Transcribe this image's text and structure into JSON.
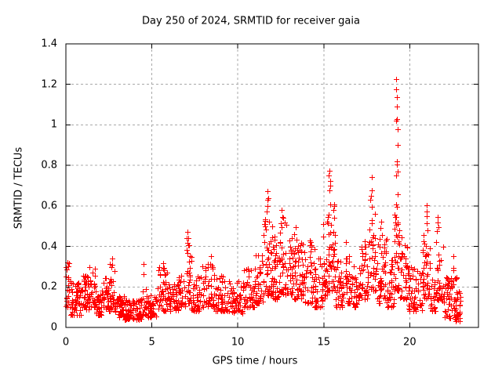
{
  "chart_data": {
    "type": "scatter",
    "title": "Day 250 of 2024, SRMTID for receiver gaia",
    "xlabel": "GPS time / hours",
    "ylabel": "SRMTID / TECUs",
    "xlim": [
      0,
      24
    ],
    "ylim": [
      0,
      1.4
    ],
    "xticks": [
      [
        0,
        "0"
      ],
      [
        5,
        "5"
      ],
      [
        10,
        "10"
      ],
      [
        15,
        "15"
      ],
      [
        20,
        "20"
      ]
    ],
    "yticks": [
      [
        0,
        "0"
      ],
      [
        0.2,
        "0.2"
      ],
      [
        0.4,
        "0.4"
      ],
      [
        0.6,
        "0.6"
      ],
      [
        0.8,
        "0.8"
      ],
      [
        1,
        "1"
      ],
      [
        1.2,
        "1.2"
      ],
      [
        1.4,
        "1.4"
      ]
    ],
    "grid": true,
    "legend": false,
    "marker": "plus",
    "marker_color": "#ff0000",
    "grid_color": "#a8a8a8",
    "axis_color": "#000000",
    "background_color": "#ffffff",
    "point_model": {
      "seed": 7,
      "skew": 1.6,
      "bands": [
        [
          0.0,
          0.25,
          0.1,
          0.33,
          22
        ],
        [
          0.25,
          0.9,
          0.06,
          0.22,
          55
        ],
        [
          0.9,
          1.35,
          0.08,
          0.26,
          38
        ],
        [
          1.35,
          1.7,
          0.1,
          0.3,
          30
        ],
        [
          1.7,
          2.1,
          0.06,
          0.19,
          32
        ],
        [
          2.1,
          2.55,
          0.08,
          0.26,
          35
        ],
        [
          2.55,
          2.85,
          0.09,
          0.32,
          24
        ],
        [
          2.85,
          3.4,
          0.05,
          0.16,
          45
        ],
        [
          3.4,
          4.45,
          0.04,
          0.14,
          75
        ],
        [
          4.45,
          4.7,
          0.06,
          0.22,
          16
        ],
        [
          4.7,
          5.3,
          0.05,
          0.16,
          45
        ],
        [
          5.3,
          5.95,
          0.08,
          0.3,
          45
        ],
        [
          5.95,
          6.55,
          0.08,
          0.23,
          42
        ],
        [
          6.55,
          6.95,
          0.1,
          0.26,
          28
        ],
        [
          6.95,
          7.3,
          0.12,
          0.45,
          30
        ],
        [
          7.3,
          7.95,
          0.08,
          0.27,
          42
        ],
        [
          7.95,
          8.6,
          0.1,
          0.32,
          45
        ],
        [
          8.6,
          9.45,
          0.08,
          0.26,
          55
        ],
        [
          9.45,
          10.3,
          0.07,
          0.23,
          55
        ],
        [
          10.3,
          10.95,
          0.1,
          0.29,
          42
        ],
        [
          10.95,
          11.5,
          0.12,
          0.36,
          40
        ],
        [
          11.5,
          12.0,
          0.16,
          0.58,
          48
        ],
        [
          12.0,
          12.4,
          0.14,
          0.45,
          36
        ],
        [
          12.4,
          12.85,
          0.16,
          0.55,
          40
        ],
        [
          12.85,
          13.6,
          0.14,
          0.46,
          60
        ],
        [
          13.6,
          14.45,
          0.12,
          0.43,
          60
        ],
        [
          14.45,
          14.95,
          0.1,
          0.36,
          38
        ],
        [
          14.95,
          15.25,
          0.14,
          0.55,
          26
        ],
        [
          15.25,
          15.7,
          0.18,
          0.65,
          48
        ],
        [
          15.7,
          16.2,
          0.1,
          0.33,
          38
        ],
        [
          16.2,
          16.65,
          0.12,
          0.4,
          32
        ],
        [
          16.65,
          17.15,
          0.1,
          0.31,
          32
        ],
        [
          17.15,
          17.55,
          0.14,
          0.45,
          30
        ],
        [
          17.55,
          18.05,
          0.18,
          0.6,
          38
        ],
        [
          18.05,
          18.7,
          0.12,
          0.46,
          48
        ],
        [
          18.7,
          19.1,
          0.1,
          0.36,
          32
        ],
        [
          19.1,
          19.45,
          0.18,
          0.65,
          38
        ],
        [
          19.45,
          19.85,
          0.14,
          0.45,
          32
        ],
        [
          19.85,
          20.75,
          0.08,
          0.3,
          60
        ],
        [
          20.75,
          21.2,
          0.14,
          0.5,
          40
        ],
        [
          21.2,
          21.5,
          0.08,
          0.25,
          20
        ],
        [
          21.5,
          21.95,
          0.13,
          0.48,
          32
        ],
        [
          21.95,
          22.3,
          0.05,
          0.25,
          28
        ],
        [
          22.3,
          22.95,
          0.03,
          0.32,
          60
        ]
      ],
      "spikes": [
        [
          2.65,
          [
            0.34
          ]
        ],
        [
          4.55,
          [
            0.31,
            0.26
          ]
        ],
        [
          5.6,
          [
            0.32
          ]
        ],
        [
          7.1,
          [
            0.47,
            0.44,
            0.42
          ]
        ],
        [
          8.4,
          [
            0.35
          ]
        ],
        [
          11.75,
          [
            0.67,
            0.64,
            0.63,
            0.6,
            0.57
          ]
        ],
        [
          12.55,
          [
            0.58,
            0.55
          ]
        ],
        [
          13.35,
          [
            0.5
          ]
        ],
        [
          15.35,
          [
            0.77,
            0.75,
            0.72,
            0.7,
            0.68
          ]
        ],
        [
          16.35,
          [
            0.42
          ]
        ],
        [
          17.75,
          [
            0.74,
            0.68,
            0.65,
            0.63
          ]
        ],
        [
          18.35,
          [
            0.52,
            0.49,
            0.46
          ]
        ],
        [
          19.25,
          [
            1.23,
            1.18,
            1.14,
            1.09,
            1.03,
            1.02,
            0.98,
            0.9,
            0.82,
            0.81,
            0.77,
            0.75,
            0.66,
            0.6,
            0.55
          ]
        ],
        [
          20.95,
          [
            0.6,
            0.57,
            0.55,
            0.52
          ]
        ],
        [
          21.65,
          [
            0.55,
            0.52,
            0.49
          ]
        ],
        [
          22.5,
          [
            0.35
          ]
        ]
      ]
    }
  }
}
